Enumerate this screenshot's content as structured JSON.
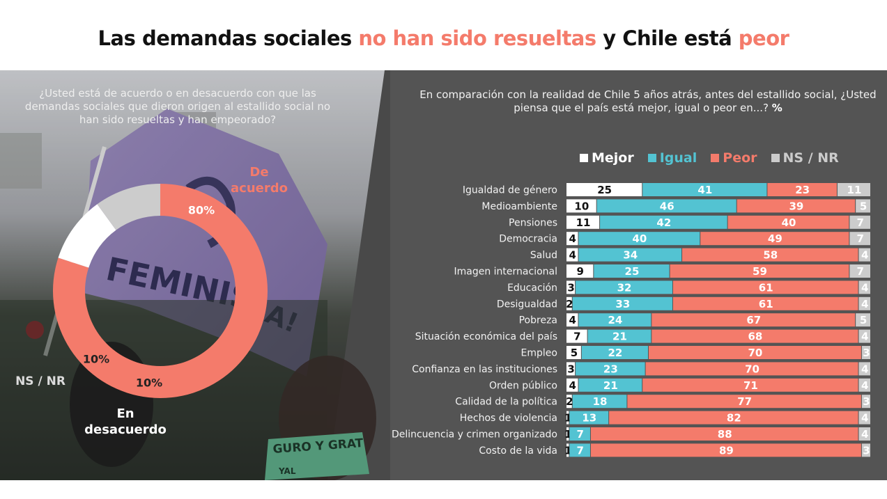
{
  "title": {
    "part1": "Las demandas sociales ",
    "part2": "no han sido resueltas",
    "part3": " y Chile está ",
    "part4": "peor"
  },
  "left": {
    "question": "¿Usted está de acuerdo o en desacuerdo con que las demandas sociales que dieron origen al estallido social no han sido resueltas y han empeorado?",
    "photo_text": "FEMINIS",
    "photo_text2": "A!",
    "photo_text3": "GURO Y GRAT",
    "photo_text4": "YAL"
  },
  "right": {
    "question": "En comparación con la realidad de Chile 5 años atrás, antes del estallido social, ¿Usted piensa que el país está mejor, igual o peor en...?",
    "unit": "%"
  },
  "colors": {
    "mejor": "#ffffff",
    "igual": "#53c3d2",
    "peor": "#f47b6b",
    "nsnr": "#cccccc"
  },
  "chart_data": [
    {
      "type": "pie",
      "slices": [
        {
          "name": "De acuerdo",
          "label_line1": "De",
          "label_line2": "acuerdo",
          "value": 80,
          "pct_label": "80%",
          "color": "#f47b6b"
        },
        {
          "name": "En desacuerdo",
          "label_line1": "En",
          "label_line2": "desacuerdo",
          "value": 10,
          "pct_label": "10%",
          "color": "#ffffff"
        },
        {
          "name": "NS / NR",
          "label_line1": "NS / NR",
          "label_line2": "",
          "value": 10,
          "pct_label": "10%",
          "color": "#cccccc"
        }
      ]
    },
    {
      "type": "bar",
      "orientation": "horizontal-stacked",
      "legend": [
        "Mejor",
        "Igual",
        "Peor",
        "NS / NR"
      ],
      "legend_position": "top",
      "categories": [
        "Igualdad de género",
        "Medioambiente",
        "Pensiones",
        "Democracia",
        "Salud",
        "Imagen internacional",
        "Educación",
        "Desigualdad",
        "Pobreza",
        "Situación económica del país",
        "Empleo",
        "Confianza en las instituciones",
        "Orden público",
        "Calidad de la política",
        "Hechos de violencia",
        "Delincuencia y crimen organizado",
        "Costo de la vida"
      ],
      "series": [
        {
          "name": "Mejor",
          "values": [
            25,
            10,
            11,
            4,
            4,
            9,
            3,
            2,
            4,
            7,
            5,
            3,
            4,
            2,
            1,
            1,
            1
          ]
        },
        {
          "name": "Igual",
          "values": [
            41,
            46,
            42,
            40,
            34,
            25,
            32,
            33,
            24,
            21,
            22,
            23,
            21,
            18,
            13,
            7,
            7
          ]
        },
        {
          "name": "Peor",
          "values": [
            23,
            39,
            40,
            49,
            58,
            59,
            61,
            61,
            67,
            68,
            70,
            70,
            71,
            77,
            82,
            88,
            89
          ]
        },
        {
          "name": "NS / NR",
          "values": [
            11,
            5,
            7,
            7,
            4,
            7,
            4,
            4,
            5,
            4,
            3,
            4,
            4,
            3,
            4,
            4,
            3
          ]
        }
      ]
    }
  ]
}
